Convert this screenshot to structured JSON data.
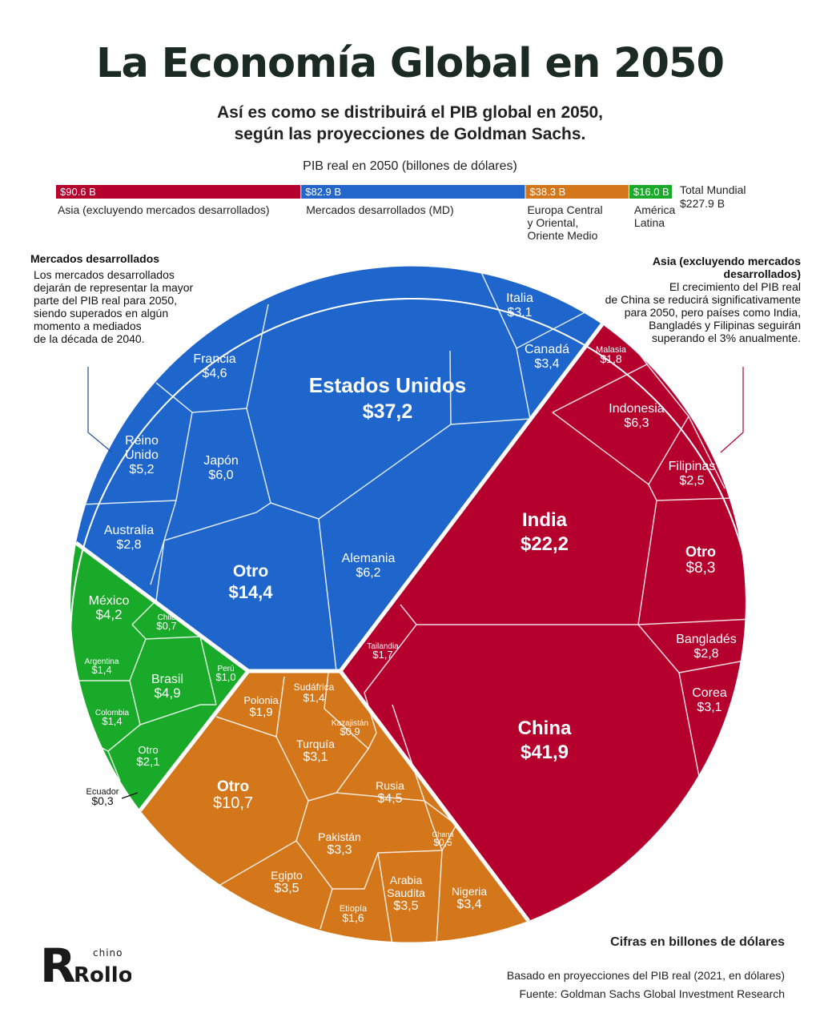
{
  "title": "La Economía Global en 2050",
  "subtitle_line1": "Así es como se distribuirá el PIB global en 2050,",
  "subtitle_line2": "según las proyecciones de Goldman Sachs.",
  "bar": {
    "title": "PIB real en 2050 (billones de dólares)",
    "total_line1": "Total Mundial",
    "total_line2": "$227.9 B",
    "segments": [
      {
        "value": 90.6,
        "label": "$90.6 B",
        "name": "Asia (excluyendo mercados desarrollados)",
        "color": "#b5002e"
      },
      {
        "value": 82.9,
        "label": "$82.9 B",
        "name": "Mercados desarrollados (MD)",
        "color": "#2266cc"
      },
      {
        "value": 38.3,
        "label": "$38.3 B",
        "name": "Europa Central y Oriental, Oriente Medio",
        "color": "#d4761a"
      },
      {
        "value": 16.0,
        "label": "$16.0 B",
        "name": "América Latina",
        "color": "#1aaa2a"
      }
    ]
  },
  "notes": {
    "left_title": "Mercados desarrollados",
    "left_lines": [
      "Los mercados desarrollados",
      "dejarán de representar la mayor",
      "parte del PIB real para 2050,",
      "siendo superados en algún",
      "momento a mediados",
      "de la década de 2040."
    ],
    "right_title_line1": "Asia (excluyendo mercados",
    "right_title_line2": "desarrollados)",
    "right_lines": [
      "El crecimiento del PIB real",
      "de China se reducirá significativamente",
      "para 2050, pero países como India,",
      "Bangladés y Filipinas seguirán",
      "superando el 3% anualmente."
    ]
  },
  "footer": {
    "unit": "Cifras en billones de dólares",
    "basis": "Basado en proyecciones del PIB real (2021, en dólares)",
    "source": "Fuente: Goldman Sachs Global Investment Research"
  },
  "logo": {
    "small": "chino",
    "big": "Rollo"
  },
  "chart_data": {
    "type": "voronoi-treemap",
    "unit": "billones de dólares",
    "groups": [
      {
        "name": "Mercados desarrollados",
        "color": "#1f66cc",
        "items": [
          {
            "name": "Estados Unidos",
            "label": "$37,2",
            "value": 37.2
          },
          {
            "name": "Otro",
            "label": "$14,4",
            "value": 14.4
          },
          {
            "name": "Alemania",
            "label": "$6,2",
            "value": 6.2
          },
          {
            "name": "Japón",
            "label": "$6,0",
            "value": 6.0
          },
          {
            "name": "Reino Unido",
            "label": "$5,2",
            "value": 5.2
          },
          {
            "name": "Francia",
            "label": "$4,6",
            "value": 4.6
          },
          {
            "name": "Canadá",
            "label": "$3,4",
            "value": 3.4
          },
          {
            "name": "Italia",
            "label": "$3,1",
            "value": 3.1
          },
          {
            "name": "Australia",
            "label": "$2,8",
            "value": 2.8
          }
        ]
      },
      {
        "name": "Asia (excluyendo mercados desarrollados)",
        "color": "#b5002e",
        "items": [
          {
            "name": "China",
            "label": "$41,9",
            "value": 41.9
          },
          {
            "name": "India",
            "label": "$22,2",
            "value": 22.2
          },
          {
            "name": "Otro",
            "label": "$8,3",
            "value": 8.3
          },
          {
            "name": "Indonesia",
            "label": "$6,3",
            "value": 6.3
          },
          {
            "name": "Corea",
            "label": "$3,1",
            "value": 3.1
          },
          {
            "name": "Bangladés",
            "label": "$2,8",
            "value": 2.8
          },
          {
            "name": "Filipinas",
            "label": "$2,5",
            "value": 2.5
          },
          {
            "name": "Malasia",
            "label": "$1,8",
            "value": 1.8
          },
          {
            "name": "Tailandia",
            "label": "$1,7",
            "value": 1.7
          }
        ]
      },
      {
        "name": "Europa Central y Oriental, Oriente Medio",
        "color": "#d4761a",
        "items": [
          {
            "name": "Otro",
            "label": "$10,7",
            "value": 10.7
          },
          {
            "name": "Rusia",
            "label": "$4,5",
            "value": 4.5
          },
          {
            "name": "Arabia Saudita",
            "label": "$3,5",
            "value": 3.5
          },
          {
            "name": "Egipto",
            "label": "$3,5",
            "value": 3.5
          },
          {
            "name": "Nigeria",
            "label": "$3,4",
            "value": 3.4
          },
          {
            "name": "Pakistán",
            "label": "$3,3",
            "value": 3.3
          },
          {
            "name": "Turquía",
            "label": "$3,1",
            "value": 3.1
          },
          {
            "name": "Polonia",
            "label": "$1,9",
            "value": 1.9
          },
          {
            "name": "Etiopía",
            "label": "$1,6",
            "value": 1.6
          },
          {
            "name": "Sudáfrica",
            "label": "$1,4",
            "value": 1.4
          },
          {
            "name": "Kazajistán",
            "label": "$0,9",
            "value": 0.9
          },
          {
            "name": "Ghana",
            "label": "$0,5",
            "value": 0.5
          }
        ]
      },
      {
        "name": "América Latina",
        "color": "#1aaa2a",
        "items": [
          {
            "name": "Brasil",
            "label": "$4,9",
            "value": 4.9
          },
          {
            "name": "México",
            "label": "$4,2",
            "value": 4.2
          },
          {
            "name": "Otro",
            "label": "$2,1",
            "value": 2.1
          },
          {
            "name": "Argentina",
            "label": "$1,4",
            "value": 1.4
          },
          {
            "name": "Colombia",
            "label": "$1,4",
            "value": 1.4
          },
          {
            "name": "Perú",
            "label": "$1,0",
            "value": 1.0
          },
          {
            "name": "Chile",
            "label": "$0,7",
            "value": 0.7
          },
          {
            "name": "Ecuador",
            "label": "$0,3",
            "value": 0.3
          }
        ]
      }
    ]
  }
}
